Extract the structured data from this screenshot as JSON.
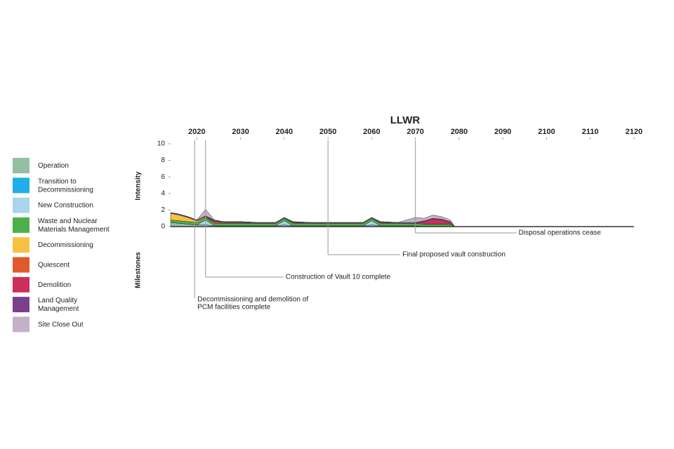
{
  "chart_data": {
    "type": "area",
    "title": "LLWR",
    "ylabel": "Intensity",
    "milestones_title": "Milestones",
    "xlim": [
      2014,
      2120
    ],
    "xticks": [
      2020,
      2030,
      2040,
      2050,
      2060,
      2070,
      2080,
      2090,
      2100,
      2110,
      2120
    ],
    "ylim": [
      0,
      10
    ],
    "yticks": [
      0,
      2,
      4,
      6,
      8,
      10
    ],
    "x": [
      2014,
      2016,
      2018,
      2020,
      2022,
      2024,
      2026,
      2030,
      2034,
      2038,
      2040,
      2042,
      2046,
      2050,
      2054,
      2058,
      2060,
      2062,
      2066,
      2070,
      2072,
      2074,
      2076,
      2078,
      2079
    ],
    "series": [
      {
        "name": "Operation",
        "color": "#93bfa3",
        "values": [
          0.5,
          0.4,
          0.3,
          0.2,
          0.2,
          0.1,
          0.1,
          0.1,
          0.1,
          0.1,
          0.2,
          0.1,
          0.1,
          0.1,
          0.1,
          0.1,
          0.2,
          0.1,
          0.1,
          0.1,
          0,
          0,
          0,
          0,
          0
        ]
      },
      {
        "name": "Transition to Decommissioning",
        "color": "#1eaee8",
        "values": [
          0,
          0,
          0,
          0,
          0,
          0,
          0,
          0,
          0,
          0,
          0,
          0,
          0,
          0,
          0,
          0,
          0,
          0,
          0,
          0,
          0,
          0,
          0,
          0,
          0
        ]
      },
      {
        "name": "New Construction",
        "color": "#a8d4ec",
        "values": [
          0,
          0,
          0,
          0,
          0.6,
          0,
          0,
          0,
          0,
          0,
          0.5,
          0,
          0,
          0,
          0,
          0,
          0.5,
          0,
          0,
          0,
          0,
          0,
          0,
          0,
          0
        ]
      },
      {
        "name": "Waste and Nuclear Materials Management",
        "color": "#4bb04a",
        "values": [
          0.3,
          0.3,
          0.3,
          0.3,
          0.3,
          0.3,
          0.3,
          0.3,
          0.3,
          0.3,
          0.3,
          0.3,
          0.3,
          0.3,
          0.3,
          0.3,
          0.3,
          0.3,
          0.3,
          0.3,
          0.3,
          0.3,
          0.3,
          0.3,
          0
        ]
      },
      {
        "name": "Decommissioning",
        "color": "#f5c242",
        "values": [
          0.8,
          0.7,
          0.5,
          0.2,
          0.1,
          0,
          0,
          0,
          0,
          0,
          0,
          0,
          0,
          0,
          0,
          0,
          0,
          0,
          0,
          0,
          0,
          0,
          0,
          0,
          0
        ]
      },
      {
        "name": "Quiescent",
        "color": "#e05a2b",
        "values": [
          0,
          0,
          0,
          0,
          0,
          0.2,
          0.1,
          0.1,
          0,
          0,
          0,
          0.1,
          0,
          0,
          0,
          0,
          0,
          0.1,
          0,
          0,
          0,
          0,
          0,
          0,
          0
        ]
      },
      {
        "name": "Demolition",
        "color": "#cc2f5a",
        "values": [
          0,
          0,
          0,
          0,
          0,
          0.1,
          0,
          0,
          0,
          0,
          0,
          0,
          0,
          0,
          0,
          0,
          0,
          0,
          0,
          0,
          0.3,
          0.6,
          0.5,
          0.2,
          0
        ]
      },
      {
        "name": "Land Quality Management",
        "color": "#7a3f8f",
        "values": [
          0.1,
          0.1,
          0.1,
          0.1,
          0.1,
          0.1,
          0.1,
          0.1,
          0.1,
          0.1,
          0.1,
          0.1,
          0.1,
          0.1,
          0.1,
          0.1,
          0.1,
          0.1,
          0.1,
          0.1,
          0.1,
          0.1,
          0.1,
          0.1,
          0
        ]
      },
      {
        "name": "Site Close Out",
        "color": "#c4b0c8",
        "values": [
          0,
          0,
          0,
          0,
          0.8,
          0,
          0,
          0,
          0,
          0,
          0,
          0,
          0,
          0,
          0,
          0,
          0,
          0,
          0,
          0.6,
          0.3,
          0.4,
          0.3,
          0.2,
          0
        ]
      }
    ],
    "milestones": [
      {
        "year": 2019.5,
        "label": [
          "Decommissioning and demolition of",
          "PCM facilities complete"
        ]
      },
      {
        "year": 2022,
        "label": [
          "Construction of Vault 10 complete"
        ]
      },
      {
        "year": 2050,
        "label": [
          "Final proposed vault construction"
        ]
      },
      {
        "year": 2070,
        "label": [
          "Disposal operations cease"
        ]
      }
    ]
  }
}
